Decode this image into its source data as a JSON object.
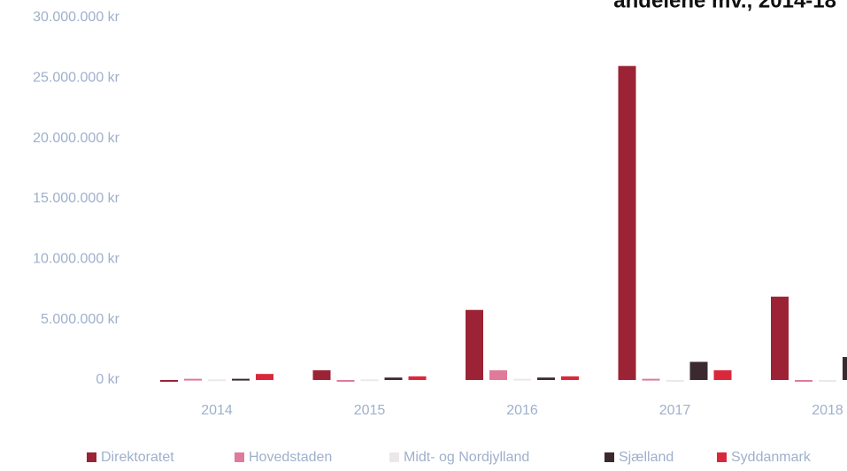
{
  "chart_data": {
    "type": "bar",
    "title": "andelene mv., 2014-18",
    "categories": [
      "2014",
      "2015",
      "2016",
      "2017",
      "2018"
    ],
    "series": [
      {
        "name": "Direktoratet",
        "color": "#9b2335",
        "values": [
          0,
          800000,
          5800000,
          26000000,
          6900000
        ]
      },
      {
        "name": "Hovedstaden",
        "color": "#e07a9a",
        "values": [
          100000,
          0,
          800000,
          100000,
          0
        ]
      },
      {
        "name": "Midt- og Nordjylland",
        "color": "#ece8ea",
        "values": [
          50000,
          50000,
          100000,
          0,
          0
        ]
      },
      {
        "name": "Sjælland",
        "color": "#3a2a30",
        "values": [
          100000,
          200000,
          200000,
          1500000,
          1900000
        ]
      },
      {
        "name": "Syddanmark",
        "color": "#d9283c",
        "values": [
          500000,
          300000,
          300000,
          800000,
          null
        ]
      }
    ],
    "ylim": [
      0,
      30000000
    ],
    "yticks": [
      {
        "value": 0,
        "label": "0 kr"
      },
      {
        "value": 5000000,
        "label": "5.000.000 kr"
      },
      {
        "value": 10000000,
        "label": "10.000.000 kr"
      },
      {
        "value": 15000000,
        "label": "15.000.000 kr"
      },
      {
        "value": 20000000,
        "label": "20.000.000 kr"
      },
      {
        "value": 25000000,
        "label": "25.000.000 kr"
      },
      {
        "value": 30000000,
        "label": "30.000.000 kr"
      }
    ],
    "grid": false
  }
}
